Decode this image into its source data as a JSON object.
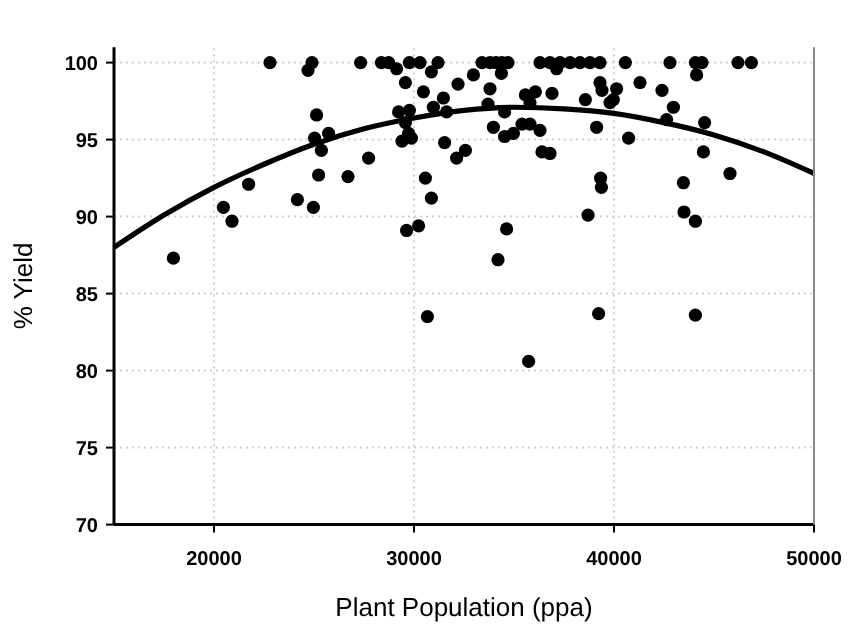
{
  "chart_data": {
    "type": "scatter",
    "xlabel": "Plant Population (ppa)",
    "ylabel": "% Yield",
    "xlim": [
      15000,
      50000
    ],
    "ylim": [
      70,
      101
    ],
    "xticks": [
      20000,
      30000,
      40000,
      50000
    ],
    "yticks": [
      70,
      75,
      80,
      85,
      90,
      95,
      100
    ],
    "grid": true,
    "series": [
      {
        "color": "#000000",
        "marker": "circle",
        "x": [
          17970,
          20470,
          20900,
          21730,
          22800,
          24170,
          24700,
          24900,
          24970,
          25130,
          25030,
          25230,
          25370,
          25730,
          26700,
          27330,
          27730,
          28370,
          28730,
          29130,
          29230,
          29570,
          29400,
          29630,
          29770,
          29770,
          29570,
          29730,
          29870,
          30230,
          30300,
          30470,
          30570,
          30870,
          30670,
          30870,
          30970,
          31200,
          31470,
          31630,
          31530,
          32200,
          32130,
          32570,
          32970,
          33400,
          33800,
          34100,
          34400,
          34700,
          33800,
          34370,
          33700,
          34530,
          33970,
          34530,
          34970,
          35400,
          35800,
          35570,
          36070,
          35800,
          36300,
          36400,
          36800,
          34630,
          34200,
          36900,
          36300,
          36800,
          37300,
          37800,
          38300,
          38800,
          39300,
          37130,
          38570,
          39130,
          39300,
          39400,
          39330,
          39370,
          38700,
          39230,
          39800,
          39970,
          40130,
          40570,
          40730,
          41300,
          42400,
          42630,
          42970,
          42800,
          43470,
          43500,
          44070,
          44070,
          44070,
          44400,
          44130,
          44530,
          44470,
          45800,
          46200,
          46870,
          35730
        ],
        "values": [
          87.3,
          90.6,
          89.7,
          92.1,
          100,
          91.1,
          99.5,
          100,
          90.6,
          96.6,
          95.1,
          92.7,
          94.3,
          95.4,
          92.6,
          100,
          93.8,
          100,
          100,
          99.6,
          96.8,
          98.7,
          94.9,
          89.1,
          100,
          96.9,
          96.1,
          95.4,
          95.1,
          89.4,
          100,
          98.1,
          92.5,
          91.2,
          83.5,
          99.4,
          97.1,
          100,
          97.7,
          96.8,
          94.8,
          98.6,
          93.8,
          94.3,
          99.2,
          100,
          100,
          100,
          100,
          100,
          98.3,
          99.3,
          97.3,
          96.8,
          95.8,
          95.2,
          95.4,
          96.0,
          96.0,
          97.9,
          98.1,
          97.4,
          95.6,
          94.2,
          94.1,
          89.2,
          87.2,
          98.0,
          100,
          100,
          100,
          100,
          100,
          100,
          100,
          99.6,
          97.6,
          95.8,
          98.7,
          98.2,
          92.5,
          91.9,
          90.1,
          83.7,
          97.4,
          97.6,
          98.3,
          100,
          95.1,
          98.7,
          98.2,
          96.3,
          97.1,
          100,
          92.2,
          90.3,
          89.7,
          83.6,
          100,
          100,
          99.2,
          96.1,
          94.2,
          92.8,
          100,
          100,
          80.6
        ]
      },
      {
        "type": "line",
        "color": "#000000",
        "marker": "none",
        "x": [
          15000,
          17500,
          20000,
          22500,
          25000,
          27500,
          30000,
          32500,
          35000,
          37500,
          40000,
          42500,
          45000,
          47500,
          50000
        ],
        "values": [
          88.0,
          90.1,
          91.9,
          93.4,
          94.7,
          95.7,
          96.4,
          96.9,
          97.1,
          97.0,
          96.7,
          96.1,
          95.3,
          94.2,
          92.8
        ]
      }
    ]
  }
}
